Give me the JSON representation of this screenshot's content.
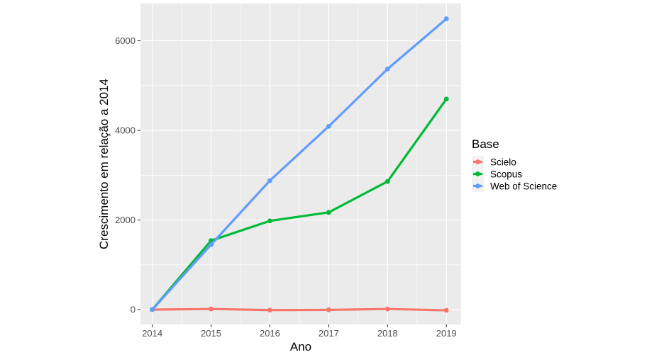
{
  "chart_data": {
    "type": "line",
    "title": "",
    "xlabel": "Ano",
    "ylabel": "Crescimento em relação a 2014",
    "x": [
      2014,
      2015,
      2016,
      2017,
      2018,
      2019
    ],
    "xticks": [
      "2014",
      "2015",
      "2016",
      "2017",
      "2018",
      "2019"
    ],
    "yticks": [
      0,
      2000,
      4000,
      6000
    ],
    "ytick_labels": [
      "0",
      "2000",
      "4000",
      "6000"
    ],
    "xlim": [
      2013.8,
      2019.25
    ],
    "ylim": [
      -330,
      6830
    ],
    "grid": true,
    "background": "#ebebeb",
    "legend": {
      "title": "Base",
      "placement": "right"
    },
    "series": [
      {
        "name": "Scielo",
        "color": "#f8766d",
        "values": [
          0,
          15,
          -10,
          -5,
          15,
          -15
        ]
      },
      {
        "name": "Scopus",
        "color": "#00ba38",
        "values": [
          0,
          1540,
          1980,
          2170,
          2860,
          4700
        ]
      },
      {
        "name": "Web of Science",
        "color": "#619cff",
        "values": [
          0,
          1450,
          2880,
          4090,
          5370,
          6490
        ]
      }
    ]
  }
}
